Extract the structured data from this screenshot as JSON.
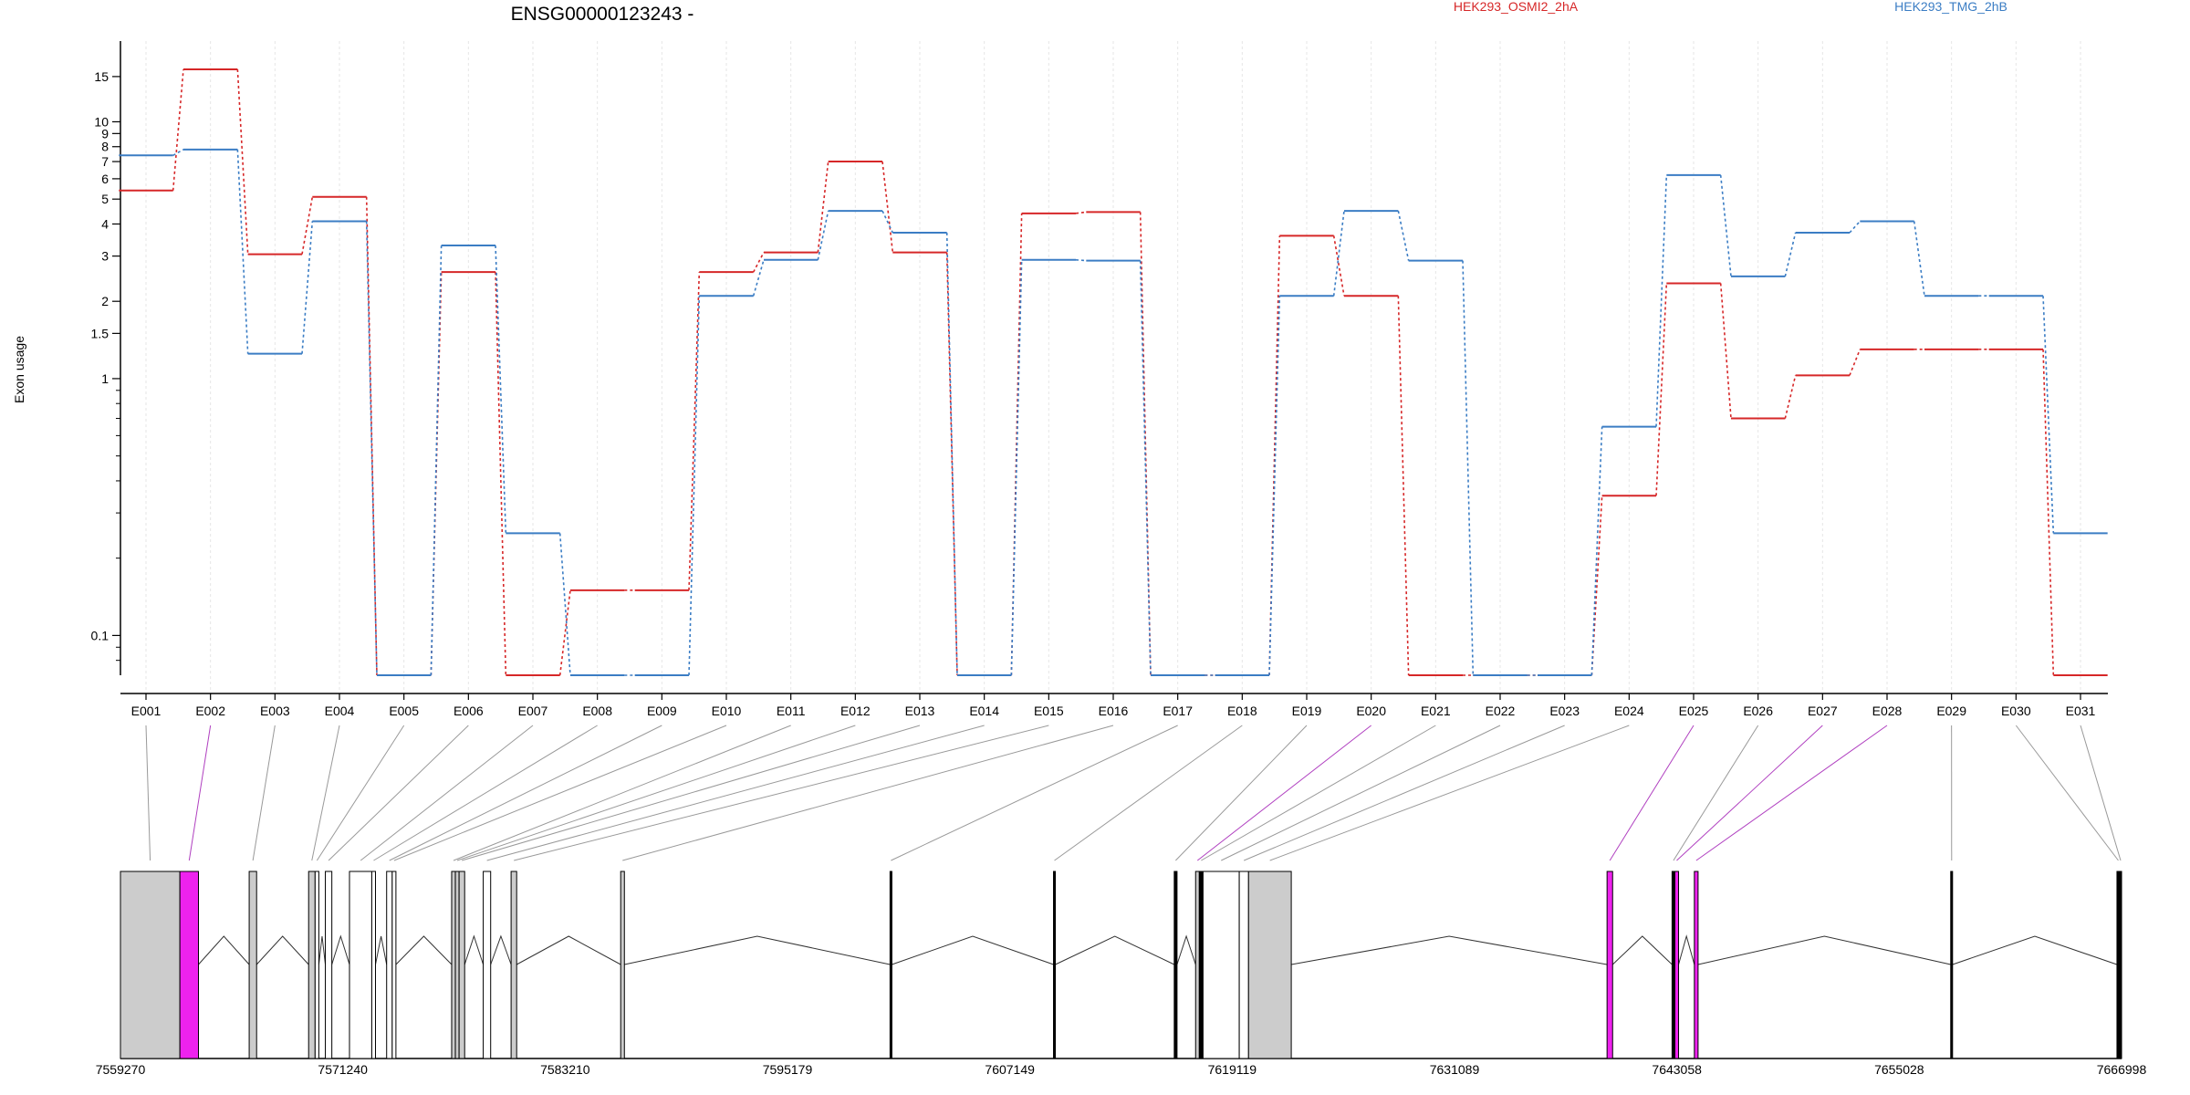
{
  "chart_data": {
    "type": "line",
    "title": "ENSG00000123243 -",
    "ylabel": "Exon usage",
    "yscale": "log",
    "ylim": [
      0.07,
      19
    ],
    "yticks": [
      {
        "v": 0.1,
        "label": "0.1"
      },
      {
        "v": 1,
        "label": "1"
      },
      {
        "v": 1.5,
        "label": "1.5"
      },
      {
        "v": 2,
        "label": "2"
      },
      {
        "v": 3,
        "label": "3"
      },
      {
        "v": 4,
        "label": "4"
      },
      {
        "v": 5,
        "label": "5"
      },
      {
        "v": 6,
        "label": "6"
      },
      {
        "v": 7,
        "label": "7"
      },
      {
        "v": 8,
        "label": "8"
      },
      {
        "v": 9,
        "label": "9"
      },
      {
        "v": 10,
        "label": "10"
      },
      {
        "v": 15,
        "label": "15"
      }
    ],
    "categories": [
      "E001",
      "E002",
      "E003",
      "E004",
      "E005",
      "E006",
      "E007",
      "E008",
      "E009",
      "E010",
      "E011",
      "E012",
      "E013",
      "E014",
      "E015",
      "E016",
      "E017",
      "E018",
      "E019",
      "E020",
      "E021",
      "E022",
      "E023",
      "E024",
      "E025",
      "E026",
      "E027",
      "E028",
      "E029",
      "E030",
      "E031"
    ],
    "series": [
      {
        "name": "HEK293_OSMI2_2hA",
        "color": "#d62728",
        "values": [
          5.4,
          16.0,
          3.05,
          5.1,
          0.07,
          2.6,
          0.07,
          0.15,
          0.15,
          2.6,
          3.1,
          7.0,
          3.1,
          0.07,
          4.4,
          4.45,
          0.07,
          0.07,
          3.6,
          2.1,
          0.07,
          0.07,
          0.07,
          0.35,
          2.35,
          0.7,
          1.03,
          1.3,
          1.3,
          1.3,
          0.07
        ]
      },
      {
        "name": "HEK293_TMG_2hB",
        "color": "#3b7dc4",
        "values": [
          7.4,
          7.8,
          1.25,
          4.1,
          0.07,
          3.3,
          0.25,
          0.07,
          0.07,
          2.1,
          2.9,
          4.5,
          3.7,
          0.07,
          2.9,
          2.88,
          0.07,
          0.07,
          2.1,
          4.5,
          2.88,
          0.07,
          0.07,
          0.65,
          6.2,
          2.5,
          3.7,
          4.1,
          2.1,
          2.1,
          0.25
        ]
      }
    ],
    "gene_model": {
      "coord_ticks": [
        "7559270",
        "7571240",
        "7583210",
        "7595179",
        "7607149",
        "7619119",
        "7631089",
        "7643058",
        "7655028",
        "7666998"
      ],
      "coord_range": [
        7559270,
        7666998
      ],
      "exons": [
        {
          "id": "E001",
          "start": 7559270,
          "end": 7562470,
          "fill": "#cccccc",
          "sig": false
        },
        {
          "id": "E002",
          "start": 7562470,
          "end": 7563470,
          "fill": "#ee22ee",
          "sig": true
        },
        {
          "id": "E003",
          "start": 7566200,
          "end": 7566600,
          "fill": "#cccccc",
          "sig": false
        },
        {
          "id": "E004",
          "start": 7569400,
          "end": 7569750,
          "fill": "#cccccc",
          "sig": false
        },
        {
          "id": "E005",
          "start": 7569750,
          "end": 7569950,
          "fill": "#ffffff",
          "sig": false
        },
        {
          "id": "E006",
          "start": 7570300,
          "end": 7570650,
          "fill": "#ffffff",
          "sig": false
        },
        {
          "id": "E007",
          "start": 7571600,
          "end": 7572800,
          "fill": "#ffffff",
          "sig": false
        },
        {
          "id": "E008",
          "start": 7572800,
          "end": 7573000,
          "fill": "#ffffff",
          "sig": false
        },
        {
          "id": "E009",
          "start": 7573600,
          "end": 7573900,
          "fill": "#ffffff",
          "sig": false
        },
        {
          "id": "E010",
          "start": 7573900,
          "end": 7574100,
          "fill": "#ffffff",
          "sig": false
        },
        {
          "id": "E011",
          "start": 7577100,
          "end": 7577300,
          "fill": "#cccccc",
          "sig": false
        },
        {
          "id": "E012",
          "start": 7577300,
          "end": 7577500,
          "fill": "#cccccc",
          "sig": false
        },
        {
          "id": "E013",
          "start": 7577500,
          "end": 7577800,
          "fill": "#cccccc",
          "sig": false
        },
        {
          "id": "E014",
          "start": 7578800,
          "end": 7579200,
          "fill": "#ffffff",
          "sig": false
        },
        {
          "id": "E015",
          "start": 7580300,
          "end": 7580600,
          "fill": "#cccccc",
          "sig": false
        },
        {
          "id": "E016",
          "start": 7586200,
          "end": 7586400,
          "fill": "#cccccc",
          "sig": false
        },
        {
          "id": "E017",
          "start": 7600700,
          "end": 7600800,
          "fill": "#000000",
          "sig": false
        },
        {
          "id": "E018",
          "start": 7609500,
          "end": 7609600,
          "fill": "#000000",
          "sig": false
        },
        {
          "id": "E019",
          "start": 7616000,
          "end": 7616150,
          "fill": "#000000",
          "sig": false
        },
        {
          "id": "E020",
          "start": 7617150,
          "end": 7617350,
          "fill": "#cccccc",
          "sig": true
        },
        {
          "id": "E021",
          "start": 7617350,
          "end": 7617550,
          "fill": "#000000",
          "sig": false
        },
        {
          "id": "E022",
          "start": 7617550,
          "end": 7619500,
          "fill": "#ffffff",
          "sig": false
        },
        {
          "id": "E023",
          "start": 7619500,
          "end": 7620000,
          "fill": "#ffffff",
          "sig": false
        },
        {
          "id": "E024",
          "start": 7620000,
          "end": 7622300,
          "fill": "#cccccc",
          "sig": false
        },
        {
          "id": "E025",
          "start": 7639300,
          "end": 7639600,
          "fill": "#ee22ee",
          "sig": true
        },
        {
          "id": "E026",
          "start": 7642800,
          "end": 7642950,
          "fill": "#000000",
          "sig": false
        },
        {
          "id": "E027",
          "start": 7642950,
          "end": 7643150,
          "fill": "#ee22ee",
          "sig": true
        },
        {
          "id": "E028",
          "start": 7644000,
          "end": 7644200,
          "fill": "#ee22ee",
          "sig": true
        },
        {
          "id": "E029",
          "start": 7657800,
          "end": 7657900,
          "fill": "#000000",
          "sig": false
        },
        {
          "id": "E030",
          "start": 7666750,
          "end": 7666900,
          "fill": "#000000",
          "sig": false
        },
        {
          "id": "E031",
          "start": 7666900,
          "end": 7666998,
          "fill": "#000000",
          "sig": false
        }
      ]
    }
  }
}
